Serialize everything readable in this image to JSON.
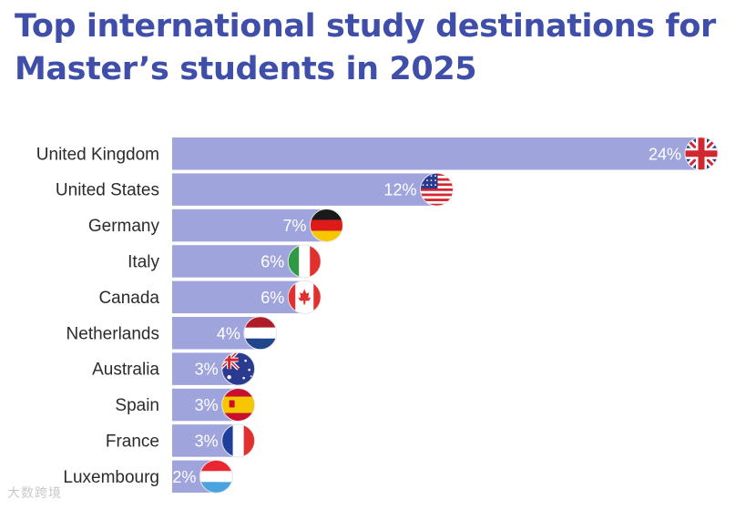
{
  "title": "Top international study destinations for Master’s students in 2025",
  "watermark": "大数跨境",
  "chart_data": {
    "type": "bar",
    "orientation": "horizontal",
    "categories": [
      "United Kingdom",
      "United States",
      "Germany",
      "Italy",
      "Canada",
      "Netherlands",
      "Australia",
      "Spain",
      "France",
      "Luxembourg"
    ],
    "values": [
      24,
      12,
      7,
      6,
      6,
      4,
      3,
      3,
      3,
      2
    ],
    "value_labels": [
      "24%",
      "12%",
      "7%",
      "6%",
      "6%",
      "4%",
      "3%",
      "3%",
      "3%",
      "2%"
    ],
    "unit": "%",
    "bar_color": "#9fa5dc",
    "flags": [
      "uk-flag-icon",
      "us-flag-icon",
      "germany-flag-icon",
      "italy-flag-icon",
      "canada-flag-icon",
      "netherlands-flag-icon",
      "australia-flag-icon",
      "spain-flag-icon",
      "france-flag-icon",
      "luxembourg-flag-icon"
    ],
    "xlabel": "",
    "ylabel": "",
    "grid": false,
    "legend": "none"
  }
}
